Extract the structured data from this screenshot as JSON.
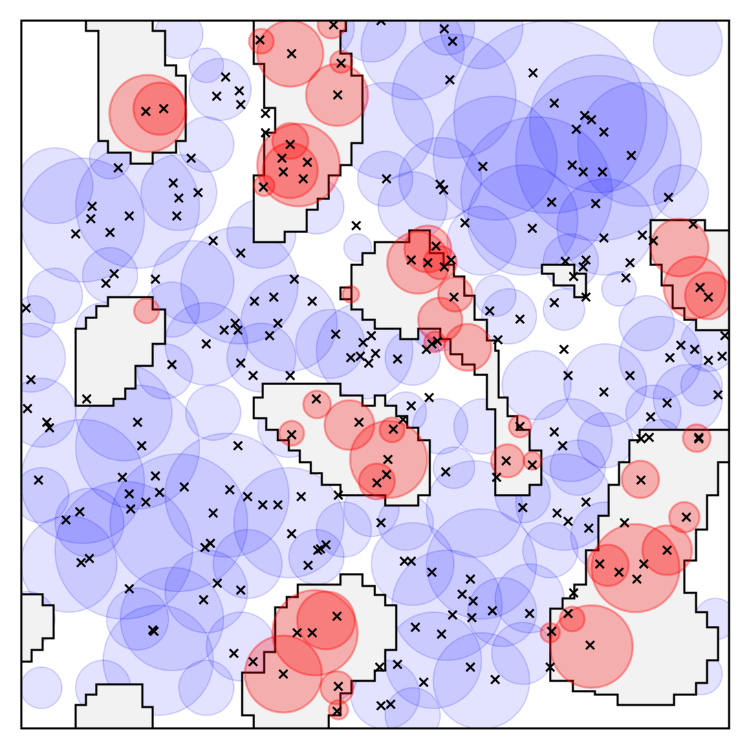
{
  "diagram": {
    "type": "spatial-coverage-map",
    "colors": {
      "free_circle": "#0000ff",
      "obstacle_circle": "#ff0000",
      "obstacle_region_fill": "#f2f2f2",
      "obstacle_region_stroke": "#000000",
      "marker": "#000000",
      "frame": "#000000"
    },
    "marker_glyph": "x-mark",
    "region_count": 12,
    "red_circle_count": 46,
    "blue_circle_count": 120
  }
}
